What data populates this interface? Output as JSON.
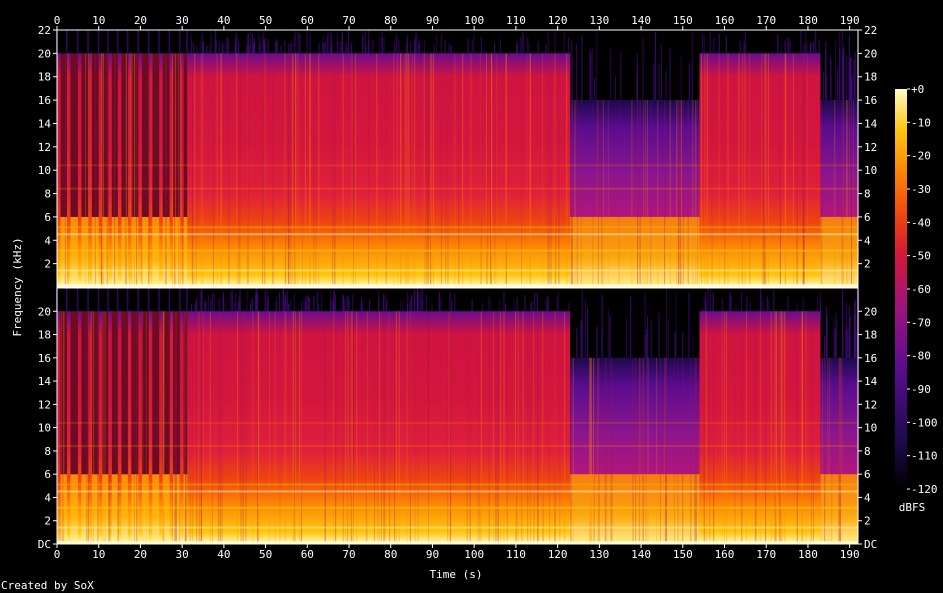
{
  "chart_data": {
    "type": "heatmap",
    "title": "",
    "xlabel": "Time (s)",
    "ylabel": "Frequency (kHz)",
    "xlim": [
      0,
      192
    ],
    "ylim": [
      0,
      22
    ],
    "x_ticks": [
      "0",
      "10",
      "20",
      "30",
      "40",
      "50",
      "60",
      "70",
      "80",
      "90",
      "100",
      "110",
      "120",
      "130",
      "140",
      "150",
      "160",
      "170",
      "180",
      "190"
    ],
    "y_ticks_top_channel": [
      "2",
      "4",
      "6",
      "8",
      "10",
      "12",
      "14",
      "16",
      "18",
      "20",
      "22"
    ],
    "y_ticks_bottom_channel": [
      "DC",
      "2",
      "4",
      "6",
      "8",
      "10",
      "12",
      "14",
      "16",
      "18",
      "20"
    ],
    "channels": 2,
    "colorbar": {
      "label": "dBFS",
      "range": [
        -120,
        0
      ],
      "ticks": [
        "+0",
        "-10",
        "-20",
        "-30",
        "-40",
        "-50",
        "-60",
        "-70",
        "-80",
        "-90",
        "-100",
        "-110",
        "-120"
      ],
      "colors": [
        "#000000",
        "#1c0a4e",
        "#5a0c8f",
        "#9a1480",
        "#d3163c",
        "#ee4410",
        "#fd8804",
        "#fec712",
        "#fffcc5"
      ]
    },
    "segments": [
      {
        "type": "percussive",
        "x": [
          0,
          32
        ],
        "cutoff_khz": 20,
        "level_db": -55
      },
      {
        "type": "dense",
        "x": [
          32,
          44
        ],
        "cutoff_khz": 20,
        "level_db": -50
      },
      {
        "type": "dense",
        "x": [
          44,
          57
        ],
        "cutoff_khz": 20,
        "level_db": -50
      },
      {
        "type": "dense",
        "x": [
          57,
          71
        ],
        "cutoff_khz": 20,
        "level_db": -50
      },
      {
        "type": "dense",
        "x": [
          71,
          89
        ],
        "cutoff_khz": 20,
        "level_db": -50
      },
      {
        "type": "dense",
        "x": [
          89,
          123
        ],
        "cutoff_khz": 20,
        "level_db": -50
      },
      {
        "type": "quiet",
        "x": [
          123,
          154
        ],
        "cutoff_khz": 16,
        "level_db": -80
      },
      {
        "type": "dense",
        "x": [
          154,
          183
        ],
        "cutoff_khz": 20,
        "level_db": -50
      },
      {
        "type": "quiet",
        "x": [
          183,
          192
        ],
        "cutoff_khz": 16,
        "level_db": -75
      }
    ],
    "annotation": "Created by SoX"
  }
}
